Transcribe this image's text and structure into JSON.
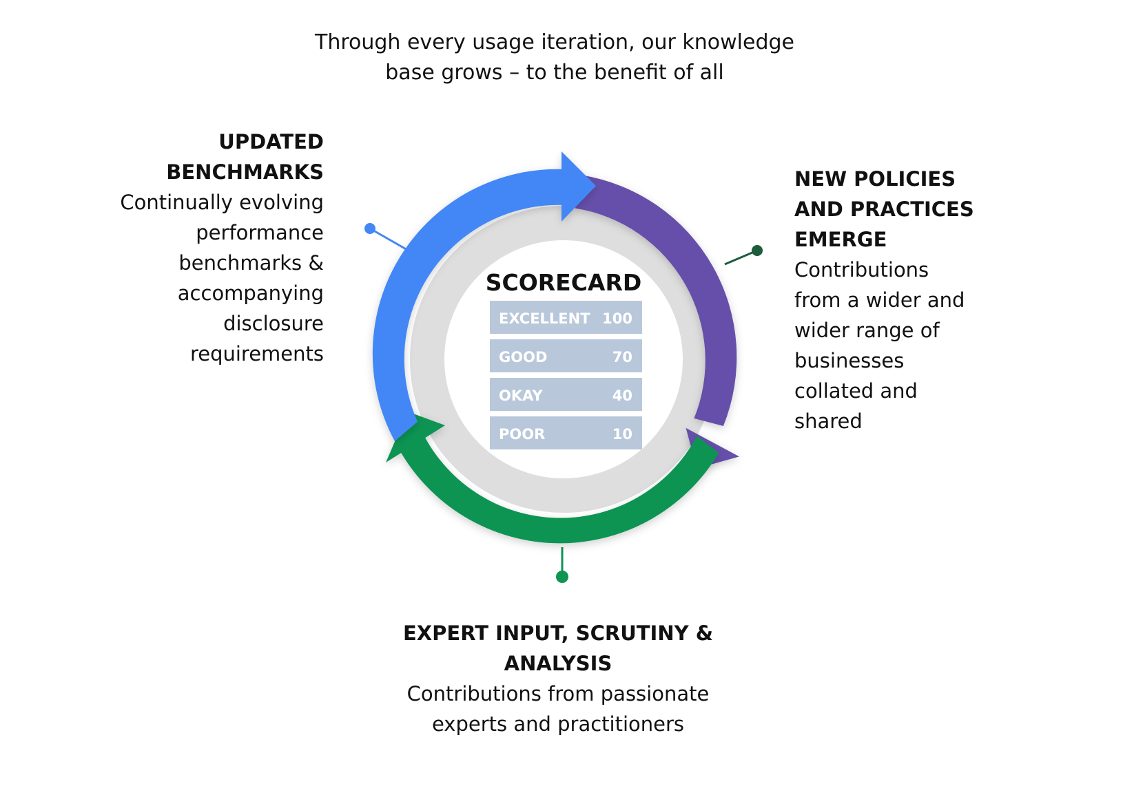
{
  "intro": {
    "line1": "Through every usage iteration, our knowledge",
    "line2": "base grows – to the benefit of all"
  },
  "colors": {
    "blue": "#4287f5",
    "purple": "#6650aa",
    "green": "#109453",
    "ring": "#dedede",
    "row": "#b8c8da",
    "row_text": "#ffffff",
    "text": "#111111"
  },
  "scorecard": {
    "title": "SCORECARD",
    "rows": [
      {
        "label": "EXCELLENT",
        "value": "100"
      },
      {
        "label": "GOOD",
        "value": "70"
      },
      {
        "label": "OKAY",
        "value": "40"
      },
      {
        "label": "POOR",
        "value": "10"
      }
    ]
  },
  "updated_benchmarks": {
    "heading_lines": [
      "UPDATED",
      "BENCHMARKS"
    ],
    "body_lines": [
      "Continually evolving",
      "performance",
      "benchmarks &",
      "accompanying",
      "disclosure",
      "requirements"
    ]
  },
  "new_policies": {
    "heading_lines": [
      "NEW POLICIES",
      "AND PRACTICES",
      "EMERGE"
    ],
    "body_lines": [
      "Contributions",
      "from a wider and",
      "wider range of",
      "businesses",
      "collated and",
      "shared"
    ]
  },
  "expert_input": {
    "heading_lines": [
      "EXPERT INPUT, SCRUTINY &",
      "ANALYSIS"
    ],
    "body_lines": [
      "Contributions from passionate",
      "experts and practitioners"
    ]
  }
}
